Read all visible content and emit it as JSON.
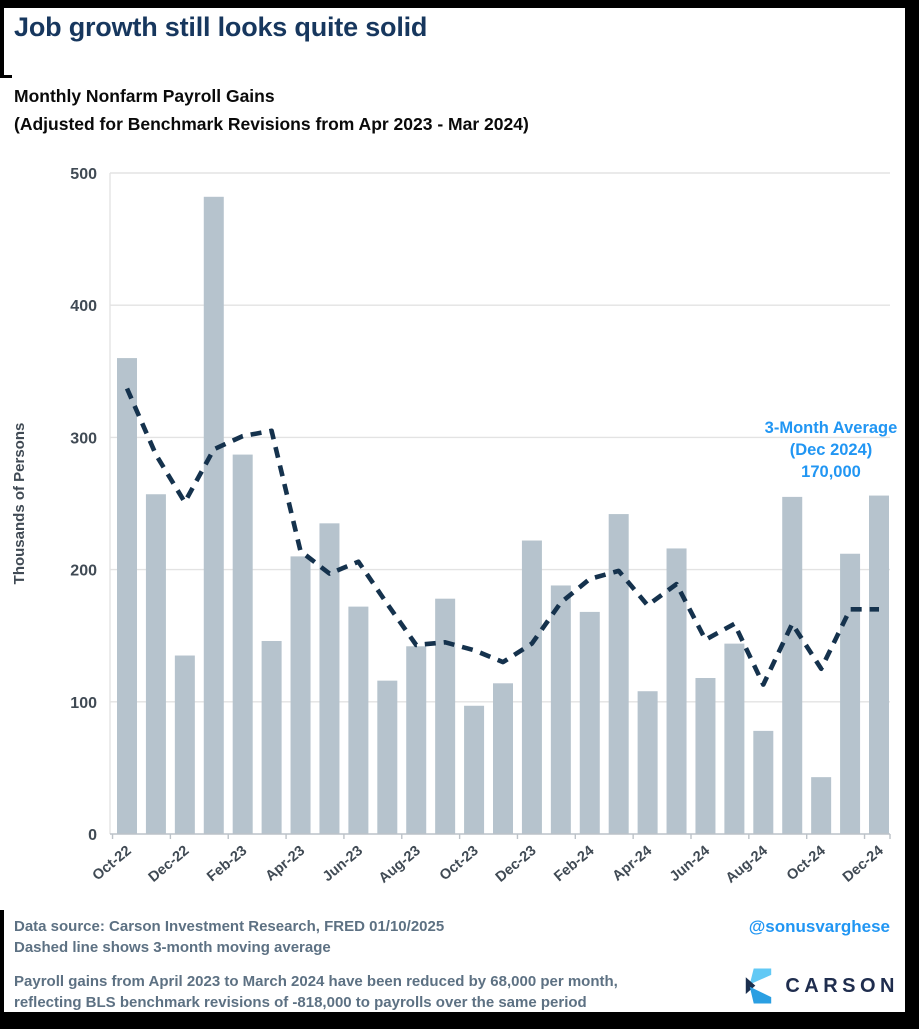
{
  "title": "Job growth still looks quite solid",
  "subtitle": {
    "line1": "Monthly Nonfarm Payroll Gains",
    "line2": "(Adjusted for Benchmark Revisions from Apr 2023 - Mar 2024)"
  },
  "chart_data": {
    "type": "bar",
    "categories": [
      "Oct-22",
      "Nov-22",
      "Dec-22",
      "Jan-23",
      "Feb-23",
      "Mar-23",
      "Apr-23",
      "May-23",
      "Jun-23",
      "Jul-23",
      "Aug-23",
      "Sep-23",
      "Oct-23",
      "Nov-23",
      "Dec-23",
      "Jan-24",
      "Feb-24",
      "Mar-24",
      "Apr-24",
      "May-24",
      "Jun-24",
      "Jul-24",
      "Aug-24",
      "Sep-24",
      "Oct-24",
      "Nov-24",
      "Dec-24"
    ],
    "series": [
      {
        "name": "Monthly nonfarm payroll gains (thousands)",
        "type": "bar",
        "values": [
          360,
          257,
          135,
          482,
          287,
          146,
          210,
          235,
          172,
          116,
          142,
          178,
          97,
          114,
          222,
          188,
          168,
          242,
          108,
          216,
          118,
          144,
          78,
          255,
          43,
          212,
          256
        ]
      },
      {
        "name": "3-month moving average",
        "type": "line",
        "dashed": true,
        "values": [
          337,
          287,
          251,
          291,
          301,
          305,
          214,
          197,
          206,
          174,
          143,
          145,
          139,
          130,
          144,
          175,
          193,
          199,
          173,
          189,
          147,
          159,
          113,
          159,
          125,
          170,
          170
        ]
      }
    ],
    "ylabel": "Thousands of Persons",
    "xlabel": "",
    "ylim": [
      0,
      500
    ],
    "yticks": [
      0,
      100,
      200,
      300,
      400,
      500
    ],
    "shown_x_ticks": [
      "Oct-22",
      "Dec-22",
      "Feb-23",
      "Apr-23",
      "Jun-23",
      "Aug-23",
      "Oct-23",
      "Dec-23",
      "Feb-24",
      "Apr-24",
      "Jun-24",
      "Aug-24",
      "Oct-24",
      "Dec-24"
    ],
    "grid": "horizontal",
    "legend": "none",
    "annotation": {
      "lines": [
        "3-Month Average",
        "(Dec 2024)",
        "170,000"
      ]
    }
  },
  "footer": {
    "line1": "Data source: Carson Investment Research, FRED   01/10/2025",
    "line2": "Dashed line shows 3-month moving average",
    "note_line1": "Payroll gains from April 2023 to March 2024 have been reduced by 68,000 per month,",
    "note_line2": "reflecting BLS benchmark revisions of -818,000 to payrolls over the same period",
    "handle": "@sonusvarghese",
    "logo_text": "CARSON"
  },
  "colors": {
    "title": "#17375e",
    "bar": "#b6c3cd",
    "ma_line": "#15324d",
    "grid": "#e3e3e3",
    "axis_line": "#bcc2c8",
    "axis_text": "#404a54",
    "annotation": "#2196f3",
    "footer_text": "#5d7183",
    "handle": "#2196f3",
    "logo_light_blue": "#62c9f5",
    "logo_mid_blue": "#2b9fe2",
    "logo_navy": "#1b2f4e",
    "logo_wordmark": "#1f2d4e"
  }
}
